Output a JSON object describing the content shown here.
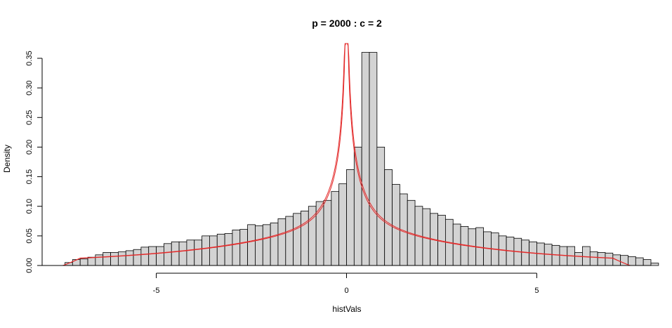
{
  "chart_data": {
    "type": "bar",
    "title": "p = 2000 : c = 2",
    "xlabel": "histVals",
    "ylabel": "Density",
    "xlim": [
      -8,
      8
    ],
    "ylim": [
      0,
      0.35
    ],
    "x_ticks": [
      -5,
      0,
      5
    ],
    "y_ticks": [
      0.0,
      0.05,
      0.1,
      0.15,
      0.2,
      0.25,
      0.3,
      0.35
    ],
    "x_tick_labels": [
      "-5",
      "0",
      "5"
    ],
    "y_tick_labels": [
      "0.00",
      "0.05",
      "0.10",
      "0.15",
      "0.20",
      "0.25",
      "0.30",
      "0.35"
    ],
    "bin_width": 0.2,
    "bins_start": -7.4,
    "histogram": {
      "values": [
        0.005,
        0.01,
        0.011,
        0.014,
        0.018,
        0.022,
        0.022,
        0.023,
        0.025,
        0.027,
        0.031,
        0.032,
        0.032,
        0.037,
        0.04,
        0.04,
        0.043,
        0.043,
        0.05,
        0.05,
        0.053,
        0.054,
        0.06,
        0.061,
        0.069,
        0.067,
        0.069,
        0.072,
        0.079,
        0.083,
        0.088,
        0.092,
        0.1,
        0.108,
        0.11,
        0.125,
        0.138,
        0.162,
        0.2,
        0.36,
        0.36,
        0.2,
        0.162,
        0.137,
        0.121,
        0.11,
        0.1,
        0.096,
        0.088,
        0.085,
        0.078,
        0.07,
        0.066,
        0.062,
        0.064,
        0.057,
        0.055,
        0.05,
        0.048,
        0.046,
        0.043,
        0.04,
        0.038,
        0.036,
        0.034,
        0.032,
        0.032,
        0.022,
        0.032,
        0.023,
        0.022,
        0.021,
        0.018,
        0.017,
        0.015,
        0.013,
        0.01,
        0.004
      ]
    },
    "density_curves": {
      "color": "#e32a2a"
    }
  }
}
